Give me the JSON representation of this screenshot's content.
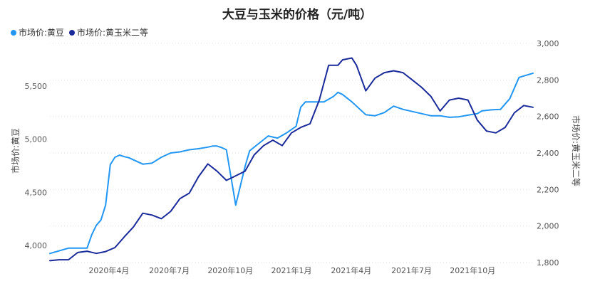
{
  "chart_data": {
    "type": "line",
    "title": "大豆与玉米的价格（元/吨）",
    "legend": {
      "position": "top-left"
    },
    "grid": true,
    "x_ticks": [
      "2020年4月",
      "2020年7月",
      "2020年10月",
      "2021年1月",
      "2021年4月",
      "2021年7月",
      "2021年10月"
    ],
    "x_range": [
      "2020-01-03",
      "2021-12-31"
    ],
    "y_left": {
      "label": "市场价:黄豆",
      "range": [
        3840,
        5900
      ],
      "ticks": [
        "4,000",
        "4,500",
        "5,000",
        "5,500"
      ]
    },
    "y_right": {
      "label": "市场价:黄玉米二等",
      "range": [
        1800,
        3000
      ],
      "ticks": [
        "1,800",
        "2,000",
        "2,200",
        "2,400",
        "2,600",
        "2,800",
        "3,000"
      ]
    },
    "series": [
      {
        "name": "市场价:黄豆",
        "color": "#2196f3",
        "axis": "left",
        "x": [
          "2020-01-03",
          "2020-01-17",
          "2020-01-31",
          "2020-02-14",
          "2020-02-28",
          "2020-03-06",
          "2020-03-13",
          "2020-03-20",
          "2020-03-27",
          "2020-04-03",
          "2020-04-10",
          "2020-04-17",
          "2020-04-24",
          "2020-05-01",
          "2020-05-08",
          "2020-05-22",
          "2020-06-05",
          "2020-06-19",
          "2020-07-03",
          "2020-07-17",
          "2020-07-31",
          "2020-08-14",
          "2020-08-28",
          "2020-09-04",
          "2020-09-11",
          "2020-09-18",
          "2020-09-25",
          "2020-10-09",
          "2020-10-16",
          "2020-10-23",
          "2020-10-30",
          "2020-11-13",
          "2020-11-27",
          "2020-12-11",
          "2020-12-25",
          "2021-01-08",
          "2021-01-15",
          "2021-01-22",
          "2021-02-05",
          "2021-02-19",
          "2021-03-05",
          "2021-03-12",
          "2021-03-19",
          "2021-04-02",
          "2021-04-09",
          "2021-04-23",
          "2021-05-07",
          "2021-05-21",
          "2021-06-04",
          "2021-06-18",
          "2021-07-02",
          "2021-07-16",
          "2021-07-30",
          "2021-08-13",
          "2021-08-27",
          "2021-09-10",
          "2021-09-24",
          "2021-10-08",
          "2021-10-15",
          "2021-10-29",
          "2021-11-12",
          "2021-11-26",
          "2021-12-10",
          "2021-12-31"
        ],
        "values": [
          3925,
          3950,
          3975,
          3975,
          3975,
          4100,
          4190,
          4240,
          4380,
          4760,
          4830,
          4850,
          4835,
          4825,
          4805,
          4765,
          4775,
          4830,
          4870,
          4880,
          4900,
          4910,
          4925,
          4935,
          4935,
          4920,
          4900,
          4380,
          4560,
          4740,
          4890,
          4960,
          5030,
          5010,
          5060,
          5120,
          5300,
          5350,
          5350,
          5350,
          5400,
          5440,
          5420,
          5350,
          5310,
          5230,
          5220,
          5250,
          5310,
          5280,
          5260,
          5240,
          5220,
          5220,
          5205,
          5210,
          5225,
          5240,
          5265,
          5275,
          5280,
          5380,
          5580,
          5620
        ]
      },
      {
        "name": "市场价:黄玉米二等",
        "color": "#1a2a9a",
        "axis": "right",
        "x": [
          "2020-01-03",
          "2020-01-17",
          "2020-01-31",
          "2020-02-14",
          "2020-02-28",
          "2020-03-13",
          "2020-03-27",
          "2020-04-10",
          "2020-04-24",
          "2020-05-08",
          "2020-05-22",
          "2020-06-05",
          "2020-06-19",
          "2020-07-03",
          "2020-07-17",
          "2020-07-31",
          "2020-08-14",
          "2020-08-28",
          "2020-09-11",
          "2020-09-25",
          "2020-10-09",
          "2020-10-23",
          "2020-11-06",
          "2020-11-20",
          "2020-12-04",
          "2020-12-18",
          "2021-01-01",
          "2021-01-15",
          "2021-01-29",
          "2021-02-12",
          "2021-02-26",
          "2021-03-12",
          "2021-03-19",
          "2021-04-02",
          "2021-04-09",
          "2021-04-23",
          "2021-05-07",
          "2021-05-21",
          "2021-06-04",
          "2021-06-18",
          "2021-07-02",
          "2021-07-16",
          "2021-07-30",
          "2021-08-13",
          "2021-08-27",
          "2021-09-10",
          "2021-09-24",
          "2021-10-08",
          "2021-10-22",
          "2021-11-05",
          "2021-11-19",
          "2021-12-03",
          "2021-12-17",
          "2021-12-31"
        ],
        "values": [
          1810,
          1815,
          1815,
          1855,
          1862,
          1850,
          1860,
          1882,
          1940,
          1995,
          2070,
          2060,
          2040,
          2080,
          2150,
          2180,
          2270,
          2340,
          2300,
          2250,
          2275,
          2300,
          2390,
          2440,
          2470,
          2440,
          2510,
          2540,
          2560,
          2690,
          2880,
          2880,
          2910,
          2920,
          2880,
          2740,
          2810,
          2840,
          2850,
          2840,
          2800,
          2760,
          2710,
          2630,
          2690,
          2700,
          2690,
          2580,
          2520,
          2510,
          2540,
          2620,
          2660,
          2650
        ]
      }
    ]
  }
}
